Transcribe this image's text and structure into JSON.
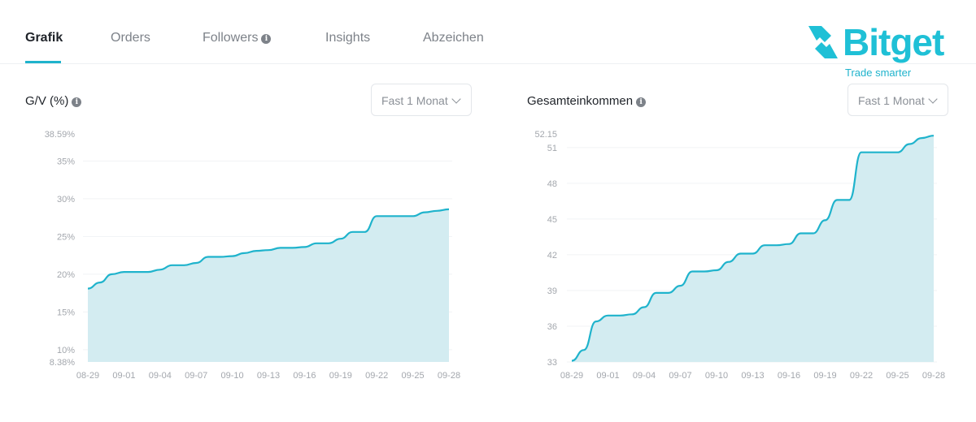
{
  "tabs": [
    {
      "label": "Grafik",
      "active": true
    },
    {
      "label": "Orders"
    },
    {
      "label": "Followers",
      "has_info": true
    },
    {
      "label": "Insights"
    },
    {
      "label": "Abzeichen"
    }
  ],
  "brand": {
    "name": "Bitget",
    "tagline": "Trade smarter",
    "color": "#1fc0d6"
  },
  "panels": [
    {
      "title": "G/V (%)",
      "dropdown": "Fast 1 Monat"
    },
    {
      "title": "Gesamteinkommen",
      "dropdown": "Fast 1 Monat"
    }
  ],
  "colors": {
    "line": "#1fb3cc",
    "area": "#d3ecf1"
  },
  "chart_data": [
    {
      "type": "area",
      "ylabel": "G/V (%)",
      "x_tick_labels": [
        "08-29",
        "09-01",
        "09-04",
        "09-07",
        "09-10",
        "09-13",
        "09-16",
        "09-19",
        "09-22",
        "09-25",
        "09-28"
      ],
      "y_ticks": [
        10,
        15,
        20,
        25,
        30,
        35
      ],
      "y_tick_labels": [
        "10%",
        "15%",
        "20%",
        "25%",
        "30%",
        "35%"
      ],
      "ylim": [
        8.38,
        38.59
      ],
      "y_extreme_labels": [
        "8.38%",
        "38.59%"
      ],
      "x": [
        "08-29",
        "08-30",
        "08-31",
        "09-01",
        "09-02",
        "09-03",
        "09-04",
        "09-05",
        "09-06",
        "09-07",
        "09-08",
        "09-09",
        "09-10",
        "09-11",
        "09-12",
        "09-13",
        "09-14",
        "09-15",
        "09-16",
        "09-17",
        "09-18",
        "09-19",
        "09-20",
        "09-21",
        "09-22",
        "09-23",
        "09-24",
        "09-25",
        "09-26",
        "09-27",
        "09-28"
      ],
      "series": [
        {
          "values": [
            18.1,
            18.9,
            20.0,
            20.3,
            20.3,
            20.3,
            20.6,
            21.2,
            21.2,
            21.5,
            22.3,
            22.3,
            22.4,
            22.8,
            23.1,
            23.2,
            23.5,
            23.5,
            23.6,
            24.1,
            24.1,
            24.7,
            25.6,
            25.6,
            27.7,
            27.7,
            27.7,
            27.7,
            28.2,
            28.4,
            28.6
          ]
        }
      ]
    },
    {
      "type": "area",
      "ylabel": "Gesamteinkommen",
      "x_tick_labels": [
        "08-29",
        "09-01",
        "09-04",
        "09-07",
        "09-10",
        "09-13",
        "09-16",
        "09-19",
        "09-22",
        "09-25",
        "09-28"
      ],
      "y_ticks": [
        33,
        36,
        39,
        42,
        45,
        48,
        51
      ],
      "y_tick_labels": [
        "33",
        "36",
        "39",
        "42",
        "45",
        "48",
        "51"
      ],
      "ylim": [
        33,
        52.15
      ],
      "y_extreme_labels": [
        "52.15"
      ],
      "x": [
        "08-29",
        "08-30",
        "08-31",
        "09-01",
        "09-02",
        "09-03",
        "09-04",
        "09-05",
        "09-06",
        "09-07",
        "09-08",
        "09-09",
        "09-10",
        "09-11",
        "09-12",
        "09-13",
        "09-14",
        "09-15",
        "09-16",
        "09-17",
        "09-18",
        "09-19",
        "09-20",
        "09-21",
        "09-22",
        "09-23",
        "09-24",
        "09-25",
        "09-26",
        "09-27",
        "09-28"
      ],
      "series": [
        {
          "values": [
            33.1,
            34.0,
            36.4,
            36.9,
            36.9,
            37.0,
            37.6,
            38.8,
            38.8,
            39.4,
            40.6,
            40.6,
            40.7,
            41.4,
            42.1,
            42.1,
            42.8,
            42.8,
            42.9,
            43.8,
            43.8,
            44.9,
            46.6,
            46.6,
            50.6,
            50.6,
            50.6,
            50.6,
            51.3,
            51.8,
            52.0
          ]
        }
      ]
    }
  ]
}
